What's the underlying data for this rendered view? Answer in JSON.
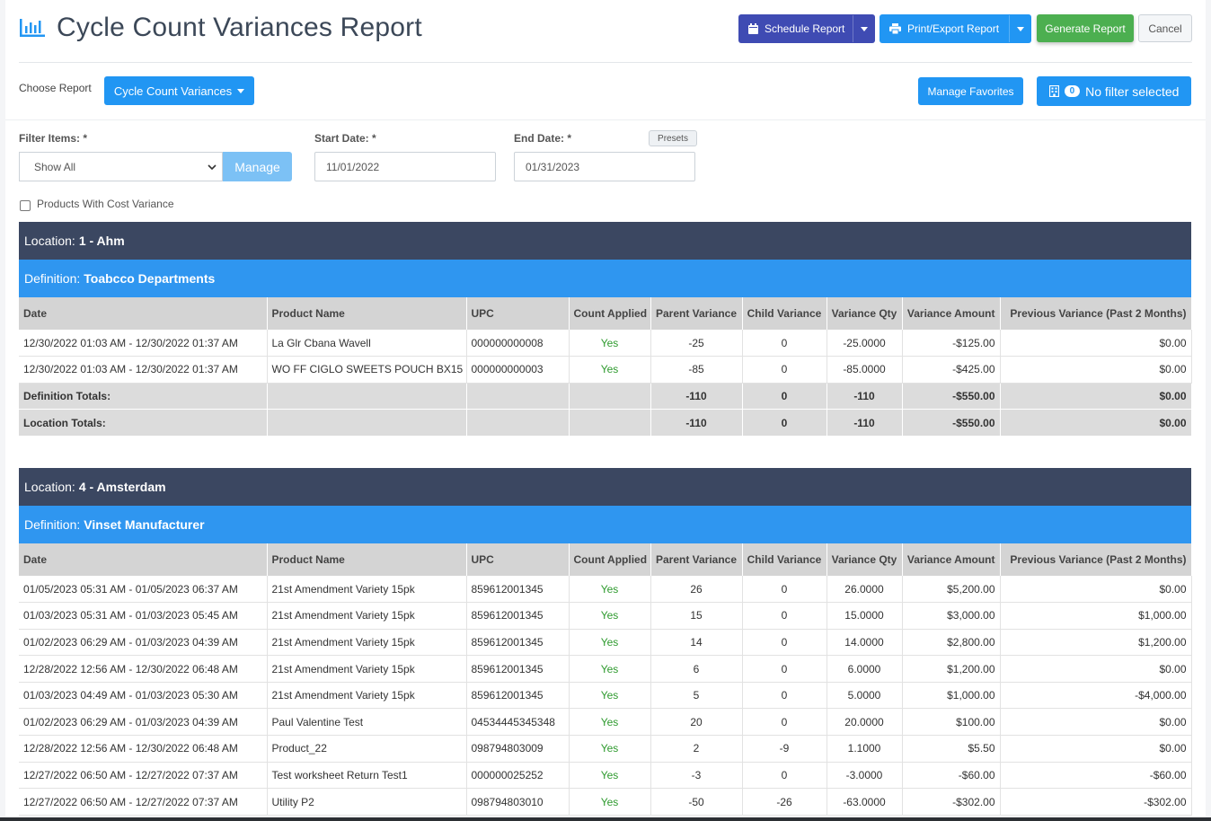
{
  "header": {
    "title": "Cycle Count Variances Report",
    "schedule_label": "Schedule Report",
    "print_label": "Print/Export Report",
    "generate_label": "Generate Report",
    "cancel_label": "Cancel"
  },
  "choose": {
    "label": "Choose Report",
    "selected_report": "Cycle Count Variances",
    "favorites_label": "Manage Favorites",
    "filter_count": "0",
    "filter_label": "No filter selected"
  },
  "filters": {
    "filter_items_label": "Filter Items: *",
    "filter_items_value": "Show All",
    "manage_label": "Manage",
    "start_label": "Start Date: *",
    "start_value": "11/01/2022",
    "end_label": "End Date: *",
    "end_value": "01/31/2023",
    "presets_label": "Presets",
    "cost_variance_label": "Products With Cost Variance"
  },
  "columns": [
    "Date",
    "Product Name",
    "UPC",
    "Count Applied",
    "Parent Variance",
    "Child Variance",
    "Variance Qty",
    "Variance Amount",
    "Previous Variance (Past 2 Months)"
  ],
  "sections": [
    {
      "location_label": "Location:",
      "location": "1 - Ahm",
      "definition_label": "Definition:",
      "definition": "Toabcco Departments",
      "rows": [
        [
          "12/30/2022 01:03 AM - 12/30/2022 01:37 AM",
          "La Glr Cbana Wavell",
          "000000000008",
          "Yes",
          "-25",
          "0",
          "-25.0000",
          "-$125.00",
          "$0.00"
        ],
        [
          "12/30/2022 01:03 AM - 12/30/2022 01:37 AM",
          "WO FF CIGLO SWEETS POUCH BX15",
          "000000000003",
          "Yes",
          "-85",
          "0",
          "-85.0000",
          "-$425.00",
          "$0.00"
        ]
      ],
      "totals": [
        [
          "Definition Totals:",
          "",
          "",
          "",
          "-110",
          "0",
          "-110",
          "-$550.00",
          "$0.00"
        ],
        [
          "Location Totals:",
          "",
          "",
          "",
          "-110",
          "0",
          "-110",
          "-$550.00",
          "$0.00"
        ]
      ]
    },
    {
      "location_label": "Location:",
      "location": "4 - Amsterdam",
      "definition_label": "Definition:",
      "definition": "Vinset Manufacturer",
      "rows": [
        [
          "01/05/2023 05:31 AM - 01/05/2023 06:37 AM",
          "21st Amendment Variety 15pk",
          "859612001345",
          "Yes",
          "26",
          "0",
          "26.0000",
          "$5,200.00",
          "$0.00"
        ],
        [
          "01/03/2023 05:31 AM - 01/03/2023 05:45 AM",
          "21st Amendment Variety 15pk",
          "859612001345",
          "Yes",
          "15",
          "0",
          "15.0000",
          "$3,000.00",
          "$1,000.00"
        ],
        [
          "01/02/2023 06:29 AM - 01/03/2023 04:39 AM",
          "21st Amendment Variety 15pk",
          "859612001345",
          "Yes",
          "14",
          "0",
          "14.0000",
          "$2,800.00",
          "$1,200.00"
        ],
        [
          "12/28/2022 12:56 AM - 12/30/2022 06:48 AM",
          "21st Amendment Variety 15pk",
          "859612001345",
          "Yes",
          "6",
          "0",
          "6.0000",
          "$1,200.00",
          "$0.00"
        ],
        [
          "01/03/2023 04:49 AM - 01/03/2023 05:30 AM",
          "21st Amendment Variety 15pk",
          "859612001345",
          "Yes",
          "5",
          "0",
          "5.0000",
          "$1,000.00",
          "-$4,000.00"
        ],
        [
          "01/02/2023 06:29 AM - 01/03/2023 04:39 AM",
          "Paul Valentine Test",
          "04534445345348",
          "Yes",
          "20",
          "0",
          "20.0000",
          "$100.00",
          "$0.00"
        ],
        [
          "12/28/2022 12:56 AM - 12/30/2022 06:48 AM",
          "Product_22",
          "098794803009",
          "Yes",
          "2",
          "-9",
          "1.1000",
          "$5.50",
          "$0.00"
        ],
        [
          "12/27/2022 06:50 AM - 12/27/2022 07:37 AM",
          "Test worksheet Return Test1",
          "000000025252",
          "Yes",
          "-3",
          "0",
          "-3.0000",
          "-$60.00",
          "-$60.00"
        ],
        [
          "12/27/2022 06:50 AM - 12/27/2022 07:37 AM",
          "Utility P2",
          "098794803010",
          "Yes",
          "-50",
          "-26",
          "-63.0000",
          "-$302.00",
          "-$302.00"
        ]
      ],
      "totals": []
    }
  ]
}
